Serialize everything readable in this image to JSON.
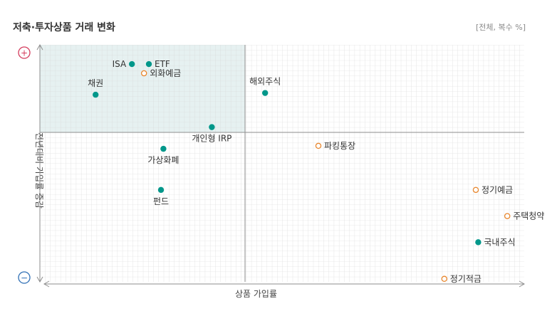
{
  "header": {
    "title": "저축·투자상품 거래 변화",
    "note": "[전체, 복수 %]"
  },
  "axes": {
    "x_label": "상품 가입률",
    "y_label": "전년대비 가입률 증감",
    "y_top_sign": "+",
    "y_bottom_sign": "−"
  },
  "colors": {
    "investment": "#00978a",
    "savings": "#e8872e",
    "highlight": "#e6f1f1",
    "accent_plus": "#d43b5c",
    "accent_minus": "#2f6fb5"
  },
  "chart_data": {
    "type": "scatter",
    "quadrant_highlight": "top-left",
    "points": [
      {
        "label": "ISA",
        "x": 0.19,
        "y": 0.78,
        "marker": "filled",
        "label_side": "left"
      },
      {
        "label": "ETF",
        "x": 0.225,
        "y": 0.78,
        "marker": "filled",
        "label_side": "right"
      },
      {
        "label": "외화예금",
        "x": 0.215,
        "y": 0.675,
        "marker": "hollow",
        "label_side": "right"
      },
      {
        "label": "채권",
        "x": 0.115,
        "y": 0.43,
        "marker": "filled",
        "label_side": "top"
      },
      {
        "label": "해외주식",
        "x": 0.465,
        "y": 0.45,
        "marker": "filled",
        "label_side": "top"
      },
      {
        "label": "가상화폐",
        "x": 0.255,
        "y": -0.11,
        "marker": "filled",
        "label_side": "bottom"
      },
      {
        "label": "개인형 IRP",
        "x": 0.355,
        "y": 0.06,
        "marker": "filled",
        "label_side": "bottom"
      },
      {
        "label": "펀드",
        "x": 0.25,
        "y": -0.385,
        "marker": "filled",
        "label_side": "bottom"
      },
      {
        "label": "파킹통장",
        "x": 0.575,
        "y": -0.09,
        "marker": "hollow",
        "label_side": "right"
      },
      {
        "label": "정기예금",
        "x": 0.9,
        "y": -0.385,
        "marker": "hollow",
        "label_side": "right"
      },
      {
        "label": "주택청약",
        "x": 0.965,
        "y": -0.56,
        "marker": "hollow",
        "label_side": "right"
      },
      {
        "label": "국내주식",
        "x": 0.905,
        "y": -0.735,
        "marker": "filled",
        "label_side": "right"
      },
      {
        "label": "정기적금",
        "x": 0.835,
        "y": -0.98,
        "marker": "hollow",
        "label_side": "right"
      }
    ]
  }
}
